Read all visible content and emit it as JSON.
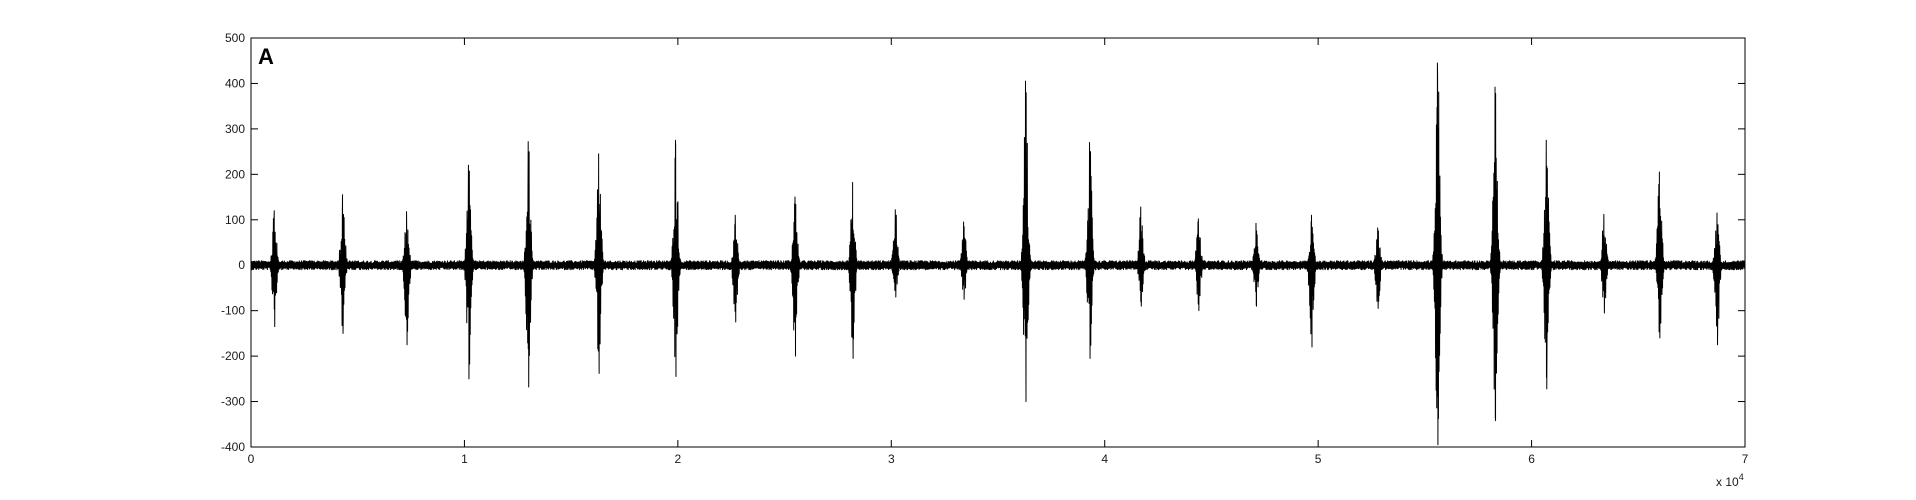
{
  "chart_data": {
    "type": "line",
    "panel_label": "A",
    "xlim": [
      0,
      70000
    ],
    "ylim": [
      -400,
      500
    ],
    "x_ticks": [
      0,
      10000,
      20000,
      30000,
      40000,
      50000,
      60000,
      70000
    ],
    "x_tick_labels": [
      "0",
      "1",
      "2",
      "3",
      "4",
      "5",
      "6",
      "7"
    ],
    "x_exponent_prefix": "x 10",
    "x_exponent_power": "4",
    "y_ticks": [
      -400,
      -300,
      -200,
      -100,
      0,
      100,
      200,
      300,
      400,
      500
    ],
    "y_tick_labels": [
      "-400",
      "-300",
      "-200",
      "-100",
      "0",
      "100",
      "200",
      "300",
      "400",
      "500"
    ],
    "grid": false,
    "line_color": "#000000",
    "baseline_noise_amplitude": 10,
    "bursts": [
      {
        "x": 1100,
        "max": 120,
        "min": -135
      },
      {
        "x": 4300,
        "max": 155,
        "min": -150
      },
      {
        "x": 7300,
        "max": 118,
        "min": -175
      },
      {
        "x": 10200,
        "max": 220,
        "min": -250
      },
      {
        "x": 13000,
        "max": 272,
        "min": -268
      },
      {
        "x": 16300,
        "max": 245,
        "min": -238
      },
      {
        "x": 19900,
        "max": 275,
        "min": -245
      },
      {
        "x": 22700,
        "max": 110,
        "min": -125
      },
      {
        "x": 25500,
        "max": 150,
        "min": -200
      },
      {
        "x": 28200,
        "max": 182,
        "min": -205
      },
      {
        "x": 30200,
        "max": 122,
        "min": -70
      },
      {
        "x": 33400,
        "max": 95,
        "min": -75
      },
      {
        "x": 36300,
        "max": 405,
        "min": -300
      },
      {
        "x": 39300,
        "max": 270,
        "min": -205
      },
      {
        "x": 41700,
        "max": 128,
        "min": -90
      },
      {
        "x": 44400,
        "max": 102,
        "min": -100
      },
      {
        "x": 47100,
        "max": 92,
        "min": -90
      },
      {
        "x": 49700,
        "max": 110,
        "min": -180
      },
      {
        "x": 52800,
        "max": 82,
        "min": -95
      },
      {
        "x": 55600,
        "max": 445,
        "min": -395
      },
      {
        "x": 58300,
        "max": 392,
        "min": -342
      },
      {
        "x": 60700,
        "max": 275,
        "min": -272
      },
      {
        "x": 63400,
        "max": 112,
        "min": -105
      },
      {
        "x": 66000,
        "max": 205,
        "min": -160
      },
      {
        "x": 68700,
        "max": 115,
        "min": -175
      }
    ]
  }
}
